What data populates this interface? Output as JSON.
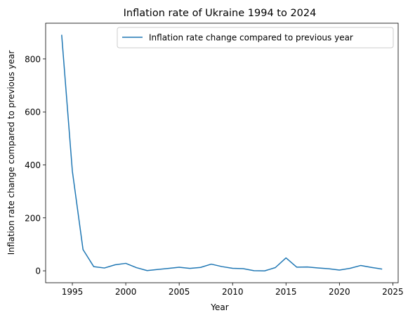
{
  "chart_data": {
    "type": "line",
    "title": "Inflation rate of Ukraine 1994 to 2024",
    "xlabel": "Year",
    "ylabel": "Inflation rate change compared to previous year",
    "xlim": [
      1992.5,
      2025.5
    ],
    "ylim": [
      -45,
      935
    ],
    "xticks": [
      1995,
      2000,
      2005,
      2010,
      2015,
      2020,
      2025
    ],
    "yticks": [
      0,
      200,
      400,
      600,
      800
    ],
    "grid": false,
    "legend_position": "upper-right",
    "series": [
      {
        "name": "Inflation rate change compared to previous year",
        "color": "#1f77b4",
        "x": [
          1994,
          1995,
          1996,
          1997,
          1998,
          1999,
          2000,
          2001,
          2002,
          2003,
          2004,
          2005,
          2006,
          2007,
          2008,
          2009,
          2010,
          2011,
          2012,
          2013,
          2014,
          2015,
          2016,
          2017,
          2018,
          2019,
          2020,
          2021,
          2022,
          2023,
          2024
        ],
        "y": [
          891.2,
          376.7,
          80.2,
          15.9,
          10.6,
          22.7,
          28.2,
          12.0,
          0.8,
          5.2,
          9.0,
          13.5,
          9.1,
          12.8,
          25.2,
          15.9,
          9.4,
          8.0,
          0.6,
          -0.2,
          12.1,
          48.7,
          13.9,
          14.4,
          10.9,
          7.9,
          2.7,
          9.4,
          20.2,
          12.9,
          6.5
        ]
      }
    ]
  }
}
